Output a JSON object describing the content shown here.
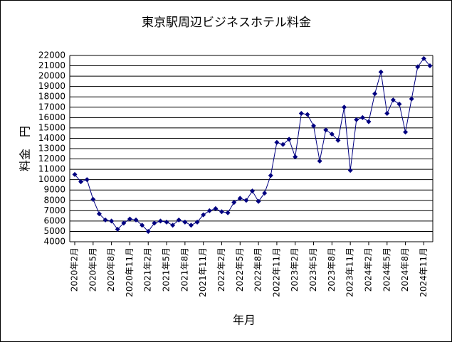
{
  "chart_data": {
    "type": "line",
    "title": "東京駅周辺ビジネスホテル料金",
    "x_label": "年月",
    "y_label": "料金　円",
    "categories": [
      "2020年2月",
      null,
      null,
      "2020年5月",
      null,
      null,
      "2020年8月",
      null,
      null,
      "2020年11月",
      null,
      null,
      "2021年2月",
      null,
      null,
      "2021年5月",
      null,
      null,
      "2021年8月",
      null,
      null,
      "2021年11月",
      null,
      null,
      "2022年2月",
      null,
      null,
      "2022年5月",
      null,
      null,
      "2022年8月",
      null,
      null,
      "2022年11月",
      null,
      null,
      "2023年2月",
      null,
      null,
      "2023年5月",
      null,
      null,
      "2023年8月",
      null,
      null,
      "2023年11月",
      null,
      null,
      "2024年2月",
      null,
      null,
      "2024年5月",
      null,
      null,
      "2024年8月",
      null,
      null,
      "2024年11月",
      null
    ],
    "series": [
      {
        "name": "料金",
        "color": "#000080",
        "values": [
          10500,
          9800,
          10000,
          8100,
          6700,
          6100,
          6000,
          5200,
          5800,
          6200,
          6100,
          5600,
          5000,
          5800,
          6000,
          5900,
          5600,
          6100,
          5900,
          5600,
          5900,
          6600,
          7000,
          7200,
          6900,
          6800,
          7800,
          8200,
          8000,
          8900,
          7900,
          8700,
          10400,
          13600,
          13400,
          13900,
          12200,
          16400,
          16300,
          15200,
          11800,
          14800,
          14400,
          13800,
          17000,
          10900,
          15800,
          16000,
          15600,
          18300,
          20400,
          16400,
          17700,
          17300,
          14600,
          17800,
          20900,
          21700,
          21000
        ]
      }
    ],
    "ylim": [
      4000,
      22000
    ],
    "yticks": [
      4000,
      5000,
      6000,
      7000,
      8000,
      9000,
      10000,
      11000,
      12000,
      13000,
      14000,
      15000,
      16000,
      17000,
      18000,
      19000,
      20000,
      21000,
      22000
    ],
    "grid": true
  }
}
